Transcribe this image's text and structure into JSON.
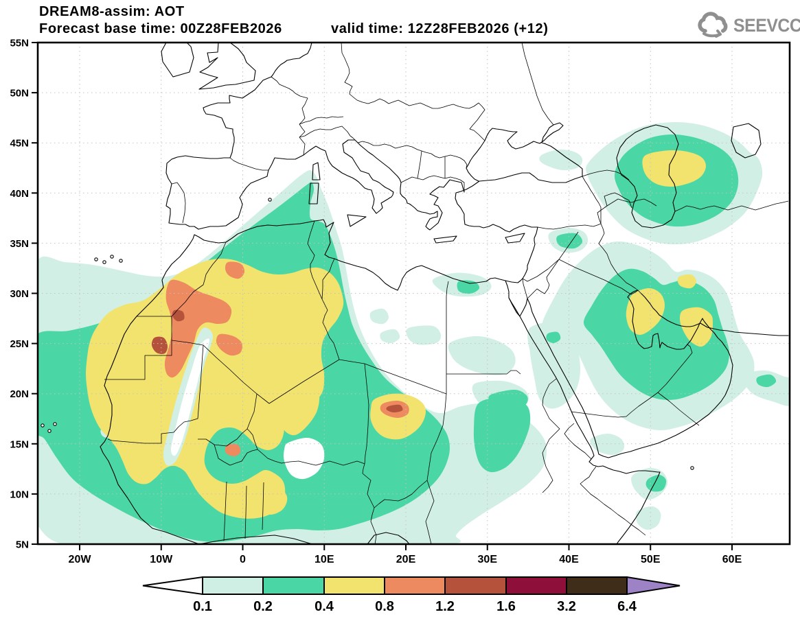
{
  "header": {
    "title": "DREAM8-assim: AOT",
    "base_time_label": "Forecast base time:",
    "base_time": "00Z28FEB2026",
    "valid_time_label": "valid time:",
    "valid_time": "12Z28FEB2026 (+12)",
    "logo_text": "SEEVCCC"
  },
  "map": {
    "variable": "AOT",
    "lat_labels": [
      "55N",
      "50N",
      "45N",
      "40N",
      "35N",
      "30N",
      "25N",
      "20N",
      "15N",
      "10N",
      "5N"
    ],
    "lon_labels": [
      "20W",
      "10W",
      "0",
      "10E",
      "20E",
      "30E",
      "40E",
      "50E",
      "60E"
    ]
  },
  "colorbar": {
    "tick_labels": [
      "0.1",
      "0.2",
      "0.4",
      "0.8",
      "1.2",
      "1.6",
      "3.2",
      "6.4"
    ],
    "cell_colors": [
      "#cfeee4",
      "#4bd7a5",
      "#f2e26e",
      "#ed8a5f",
      "#b4523c",
      "#8e103a",
      "#3f2d1a"
    ],
    "under_arrow_color": "#ffffff",
    "over_arrow_color": "#9e82c6"
  },
  "palette": {
    "aot_ge_0_1": "#d2efe6",
    "aot_ge_0_2": "#4bd7a5",
    "aot_ge_0_4": "#f2e26e",
    "aot_ge_0_8": "#ed8a5f",
    "aot_ge_1_2": "#b4523c",
    "background": "#ffffff",
    "coastline": "#000000",
    "grid": "#c2c2c2",
    "logo_gray": "#8f8f8f"
  }
}
